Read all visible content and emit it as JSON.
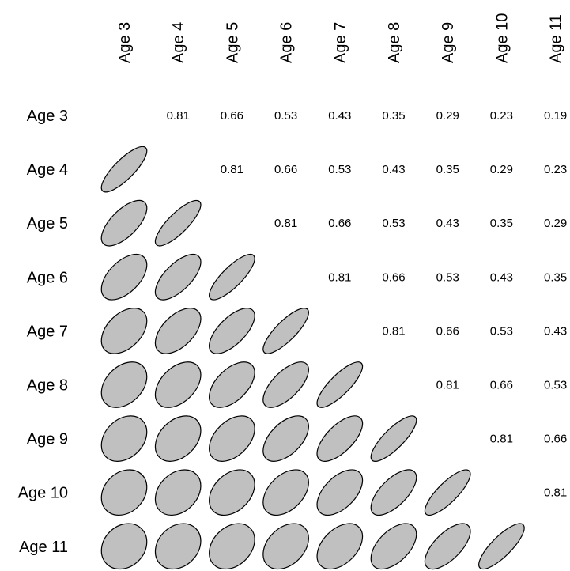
{
  "chart_data": {
    "type": "heatmap",
    "variables": [
      "Age 3",
      "Age 4",
      "Age 5",
      "Age 6",
      "Age 7",
      "Age 8",
      "Age 9",
      "Age 10",
      "Age 11"
    ],
    "correlation_by_lag": {
      "1": 0.81,
      "2": 0.66,
      "3": 0.53,
      "4": 0.43,
      "5": 0.35,
      "6": 0.29,
      "7": 0.23,
      "8": 0.19
    },
    "upper_triangle": "numbers",
    "lower_triangle": "ellipses",
    "ellipse_fill": "#c0c0c0",
    "ellipse_stroke": "#000000"
  }
}
